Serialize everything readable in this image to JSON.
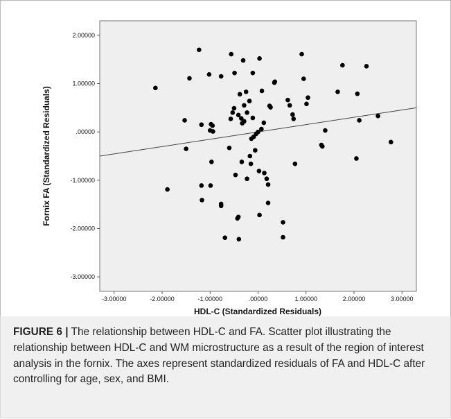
{
  "figure": {
    "caption_label": "FIGURE 6 |",
    "caption_text": " The relationship between HDL-C and FA. Scatter plot illustrating the relationship between HDL-C and WM microstructure as a result of the region of interest analysis in the fornix. The axes represent standardized residuals of FA and HDL-C after controlling for age, sex, and BMI."
  },
  "chart_data": {
    "type": "scatter",
    "xlabel": "HDL-C (Standardized Residuals)",
    "ylabel": "Fornix FA (Standardized Residuals)",
    "xlim": [
      -3.3,
      3.3
    ],
    "ylim": [
      -3.3,
      2.3
    ],
    "x_ticks": [
      -3,
      -2,
      -1,
      0,
      1,
      2,
      3
    ],
    "x_tick_labels": [
      "-3.00000",
      "-2.00000",
      "-1.00000",
      ".00000",
      "1.00000",
      "2.00000",
      "3.00000"
    ],
    "y_ticks": [
      2,
      1,
      0,
      -1,
      -2,
      -3
    ],
    "y_tick_labels": [
      "2.00000",
      "1.00000",
      ".00000",
      "-1.00000",
      "-2.00000",
      "-3.00000"
    ],
    "grid": false,
    "fit_line": {
      "x": [
        -3.3,
        3.3
      ],
      "y": [
        -0.5,
        0.5
      ]
    },
    "colors": {
      "plot_background": "#efefef",
      "points": "#000000",
      "fit_line": "#444444"
    },
    "points": [
      [
        -1.23,
        1.7
      ],
      [
        -0.56,
        1.61
      ],
      [
        -0.31,
        1.48
      ],
      [
        0.03,
        1.52
      ],
      [
        0.91,
        1.61
      ],
      [
        1.76,
        1.38
      ],
      [
        2.26,
        1.36
      ],
      [
        -1.43,
        1.11
      ],
      [
        -1.02,
        1.19
      ],
      [
        -0.77,
        1.15
      ],
      [
        -0.49,
        1.22
      ],
      [
        -0.11,
        1.22
      ],
      [
        0.95,
        1.1
      ],
      [
        -2.14,
        0.91
      ],
      [
        -0.25,
        0.83
      ],
      [
        -0.38,
        0.78
      ],
      [
        0.08,
        0.85
      ],
      [
        0.34,
        1.02
      ],
      [
        0.35,
        1.04
      ],
      [
        1.66,
        0.83
      ],
      [
        2.07,
        0.79
      ],
      [
        -0.18,
        0.64
      ],
      [
        0.62,
        0.66
      ],
      [
        1.04,
        0.71
      ],
      [
        1.01,
        0.58
      ],
      [
        0.66,
        0.55
      ],
      [
        -0.29,
        0.55
      ],
      [
        -0.5,
        0.49
      ],
      [
        -0.53,
        0.4
      ],
      [
        -0.23,
        0.4
      ],
      [
        0.24,
        0.54
      ],
      [
        0.26,
        0.51
      ],
      [
        0.72,
        0.36
      ],
      [
        0.74,
        0.27
      ],
      [
        -0.41,
        0.35
      ],
      [
        -0.35,
        0.28
      ],
      [
        -0.29,
        0.22
      ],
      [
        -0.57,
        0.27
      ],
      [
        -0.33,
        0.18
      ],
      [
        -0.11,
        0.29
      ],
      [
        0.12,
        0.19
      ],
      [
        0.07,
        0.06
      ],
      [
        0.0,
        0.0
      ],
      [
        -0.04,
        -0.04
      ],
      [
        -0.09,
        -0.1
      ],
      [
        -0.14,
        -0.14
      ],
      [
        -1.53,
        0.24
      ],
      [
        -1.18,
        0.15
      ],
      [
        -0.98,
        0.16
      ],
      [
        -0.95,
        0.13
      ],
      [
        -1.0,
        0.03
      ],
      [
        -0.94,
        0.01
      ],
      [
        1.4,
        0.03
      ],
      [
        2.11,
        0.24
      ],
      [
        2.5,
        0.33
      ],
      [
        -1.5,
        -0.35
      ],
      [
        -0.6,
        -0.33
      ],
      [
        -0.06,
        -0.38
      ],
      [
        1.32,
        -0.27
      ],
      [
        1.34,
        -0.3
      ],
      [
        2.77,
        -0.21
      ],
      [
        -0.17,
        -0.5
      ],
      [
        -0.97,
        -0.62
      ],
      [
        -0.34,
        -0.62
      ],
      [
        -0.15,
        -0.66
      ],
      [
        0.77,
        -0.66
      ],
      [
        2.05,
        -0.55
      ],
      [
        -0.47,
        -0.89
      ],
      [
        0.02,
        -0.81
      ],
      [
        0.13,
        -0.85
      ],
      [
        -0.23,
        -0.97
      ],
      [
        0.18,
        -0.97
      ],
      [
        0.21,
        -1.09
      ],
      [
        -1.89,
        -1.19
      ],
      [
        -1.18,
        -1.11
      ],
      [
        -0.99,
        -1.11
      ],
      [
        -1.17,
        -1.41
      ],
      [
        -0.77,
        -1.49
      ],
      [
        -0.77,
        -1.53
      ],
      [
        0.21,
        -1.47
      ],
      [
        -0.41,
        -1.76
      ],
      [
        -0.43,
        -1.79
      ],
      [
        0.03,
        -1.72
      ],
      [
        0.52,
        -1.87
      ],
      [
        -0.69,
        -2.19
      ],
      [
        -0.4,
        -2.22
      ],
      [
        0.52,
        -2.18
      ]
    ]
  }
}
